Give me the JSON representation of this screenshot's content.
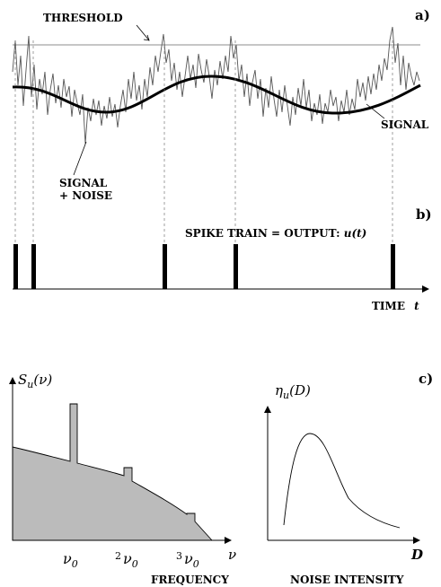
{
  "panel_a": {
    "tag": "a)",
    "threshold_label": "THRESHOLD",
    "signal_label": "SIGNAL",
    "noise_label_1": "SIGNAL",
    "noise_label_2": "+ NOISE"
  },
  "panel_b": {
    "tag": "b)",
    "caption_main": "SPIKE TRAIN = OUTPUT: ",
    "caption_func": "u(t)",
    "time_label": "TIME",
    "time_var": "t"
  },
  "panel_c": {
    "tag": "c)",
    "spectrum_ylabel_base": "S",
    "spectrum_ylabel_sub": "u",
    "spectrum_ylabel_arg": "(ν)",
    "spectrum_xvar": "ν",
    "spectrum_ticks": [
      {
        "coef": "",
        "base": "ν",
        "sub": "0"
      },
      {
        "coef": "2",
        "base": "ν",
        "sub": "0"
      },
      {
        "coef": "3",
        "base": "ν",
        "sub": "0"
      }
    ],
    "frequency_label": "FREQUENCY",
    "eta_label_base": "η",
    "eta_label_sub": "u",
    "eta_label_arg": "(D)",
    "eta_xvar": "D",
    "noise_intensity_label": "NOISE INTENSITY"
  }
}
